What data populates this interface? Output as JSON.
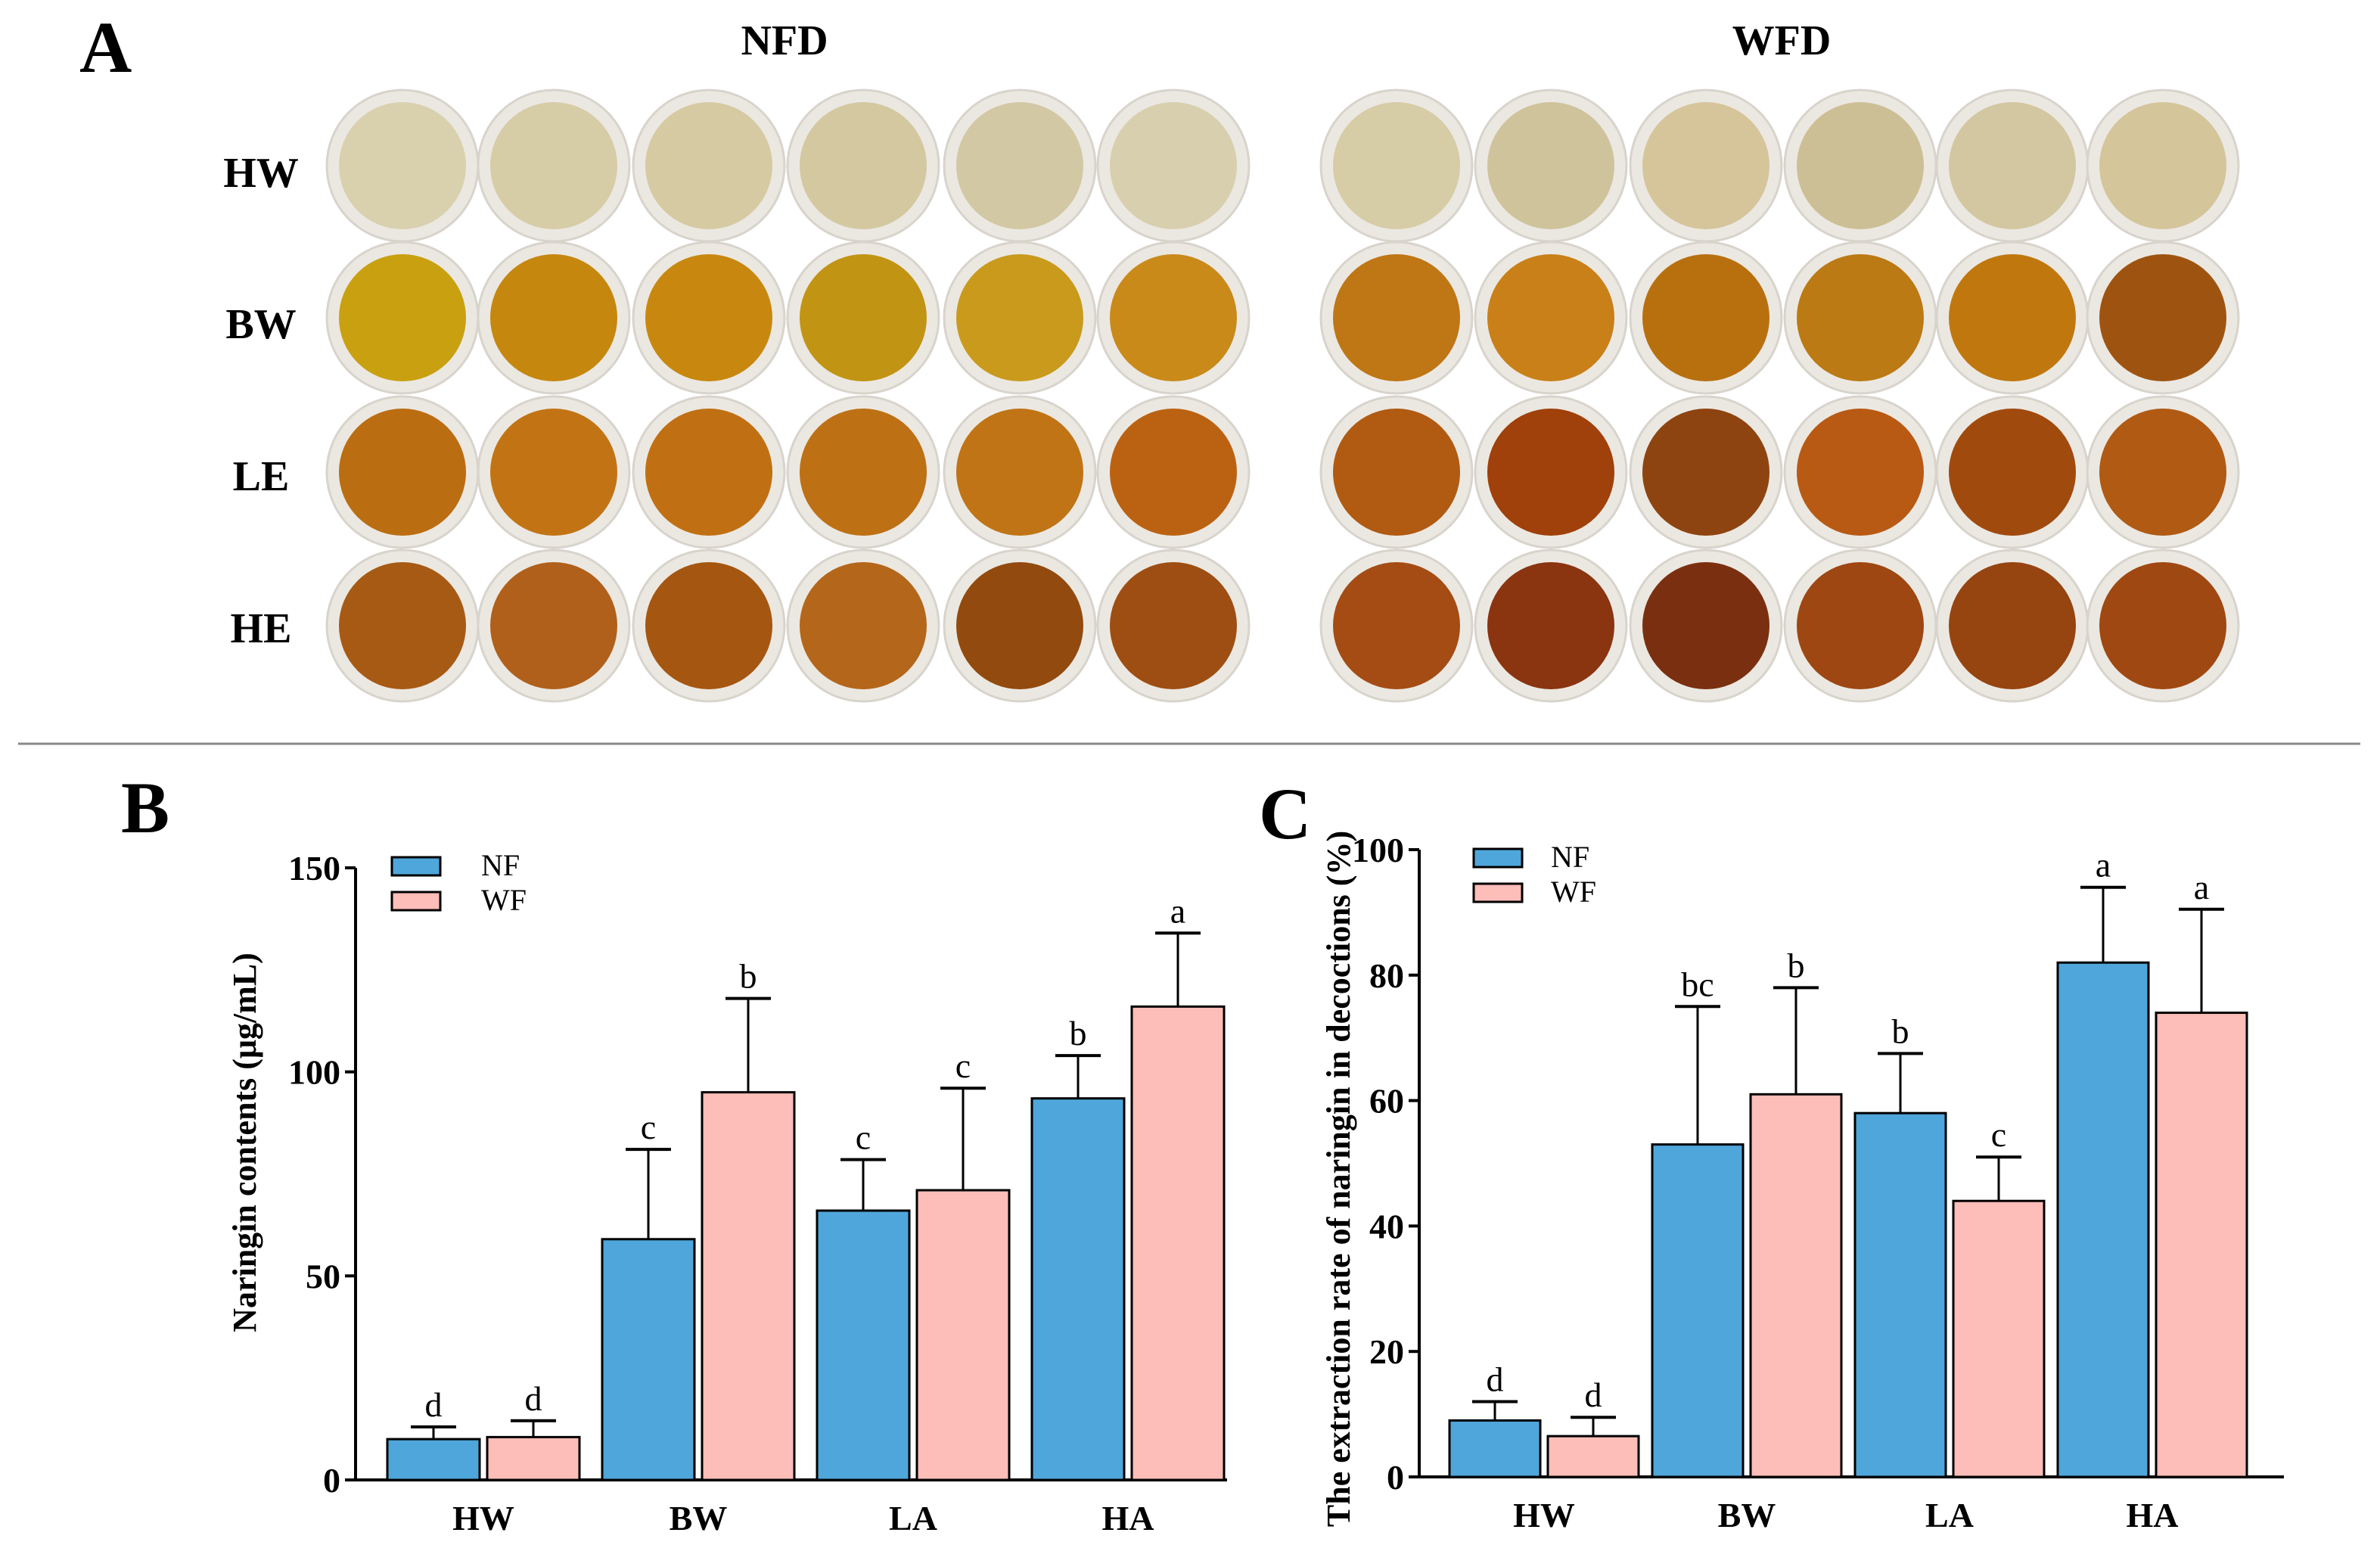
{
  "panel_a": {
    "label": "A",
    "groups": [
      "NFD",
      "WFD"
    ],
    "rows": [
      "HW",
      "BW",
      "LE",
      "HE"
    ],
    "dish_colors": {
      "NFD": [
        [
          "#d9d0ae",
          "#d6cca6",
          "#d5caa2",
          "#d3c8a0",
          "#d2c8a4",
          "#d8cfae"
        ],
        [
          "#c9a010",
          "#c6870f",
          "#c8880f",
          "#c29414",
          "#c99a1c",
          "#c98a1a"
        ],
        [
          "#bb6d12",
          "#c27414",
          "#c07012",
          "#bd7014",
          "#c07415",
          "#bb6212"
        ],
        [
          "#a75a14",
          "#b0601a",
          "#a55610",
          "#b4661a",
          "#924a0e",
          "#9e4e12"
        ]
      ],
      "WFD": [
        [
          "#d6cca6",
          "#cfc39c",
          "#d6c59a",
          "#cdbf95",
          "#d2c7a0",
          "#d4c59a"
        ],
        [
          "#bf7614",
          "#c98018",
          "#b8700f",
          "#bc7a14",
          "#c0780e",
          "#9e5410"
        ],
        [
          "#b05a12",
          "#a0400a",
          "#8e4410",
          "#b85a14",
          "#a14a0e",
          "#b05a14"
        ],
        [
          "#a44c14",
          "#8a3410",
          "#7a3010",
          "#9e4712",
          "#964410",
          "#a04812"
        ]
      ]
    }
  },
  "chart_data": [
    {
      "type": "bar",
      "panel_label": "B",
      "title": "",
      "xlabel": "",
      "ylabel": "Naringin contents (μg/mL)",
      "ylim": [
        0,
        150
      ],
      "yticks": [
        "0",
        "50",
        "100",
        "150"
      ],
      "ytick_values": [
        0,
        50,
        100,
        150
      ],
      "categories": [
        "HW",
        "BW",
        "LA",
        "HA"
      ],
      "legend": "top-left",
      "series": [
        {
          "name": "NF",
          "color": "#4fa6da",
          "values": [
            10,
            59,
            66,
            93.5
          ],
          "error_upper": [
            13,
            81,
            78.5,
            104
          ],
          "letters": [
            "d",
            "c",
            "c",
            "b"
          ]
        },
        {
          "name": "WF",
          "color": "#fdbdb8",
          "values": [
            10.5,
            95,
            71,
            116
          ],
          "error_upper": [
            14.5,
            118,
            96,
            134
          ],
          "letters": [
            "d",
            "b",
            "c",
            "a"
          ]
        }
      ]
    },
    {
      "type": "bar",
      "panel_label": "C",
      "title": "",
      "xlabel": "",
      "ylabel": "The extraction rate of naringin in decoctions (%)",
      "ylim": [
        0,
        100
      ],
      "yticks": [
        "0",
        "20",
        "40",
        "60",
        "80",
        "100"
      ],
      "ytick_values": [
        0,
        20,
        40,
        60,
        80,
        100
      ],
      "categories": [
        "HW",
        "BW",
        "LA",
        "HA"
      ],
      "legend": "top-left",
      "series": [
        {
          "name": "NF",
          "color": "#4fa6da",
          "values": [
            9,
            53,
            58,
            82
          ],
          "error_upper": [
            12,
            75,
            67.5,
            94
          ],
          "letters": [
            "d",
            "bc",
            "b",
            "a"
          ]
        },
        {
          "name": "WF",
          "color": "#fdbdb8",
          "values": [
            6.5,
            61,
            44,
            74
          ],
          "error_upper": [
            9.5,
            78,
            51,
            90.5
          ],
          "letters": [
            "d",
            "b",
            "c",
            "a"
          ]
        }
      ]
    }
  ]
}
